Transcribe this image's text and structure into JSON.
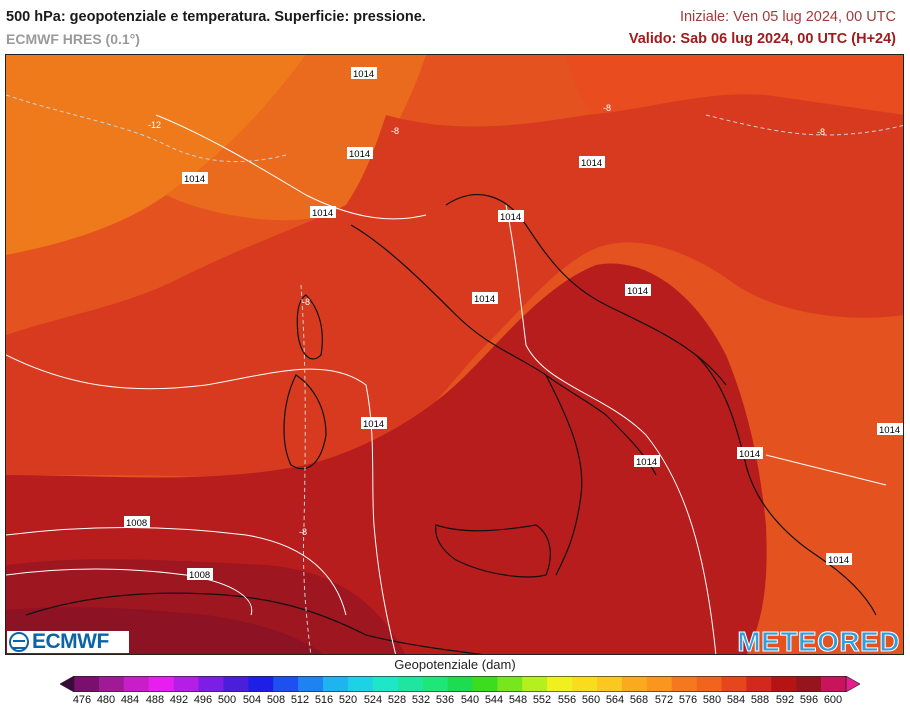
{
  "header": {
    "title": "500 hPa: geopotenziale e temperatura. Superficie: pressione.",
    "model": "ECMWF HRES (0.1°)",
    "initial": "Iniziale: Ven 05 lug 2024, 00 UTC",
    "valid": "Valido: Sab 06 lug 2024, 00 UTC (H+24)"
  },
  "map": {
    "isobar_labels": [
      "1014",
      "1014",
      "1014",
      "1014",
      "1014",
      "1014",
      "1014",
      "1014",
      "1014",
      "1014",
      "1014",
      "1014",
      "1014",
      "1008",
      "1008"
    ],
    "temperature_labels": [
      "-12",
      "-8",
      "-8",
      "-8",
      "-8",
      "-8"
    ]
  },
  "logos": {
    "ecmwf": "ECMWF",
    "meteored": "METEORED"
  },
  "legend": {
    "title": "Geopotenziale (dam)",
    "ticks": [
      "476",
      "480",
      "484",
      "488",
      "492",
      "496",
      "500",
      "504",
      "508",
      "512",
      "516",
      "520",
      "524",
      "528",
      "532",
      "536",
      "540",
      "544",
      "548",
      "552",
      "556",
      "560",
      "564",
      "568",
      "572",
      "576",
      "580",
      "584",
      "588",
      "592",
      "596",
      "600"
    ],
    "colors": [
      "#3a0a3a",
      "#7a0f6e",
      "#a01a96",
      "#c81ec8",
      "#e61ef0",
      "#b41ee6",
      "#7d1ee6",
      "#4b1edc",
      "#1e1ee6",
      "#1e50f0",
      "#1e82f0",
      "#1eb4f0",
      "#1ed2e6",
      "#1ee6c8",
      "#1ee6a0",
      "#1ee678",
      "#1edc50",
      "#3cdc1e",
      "#78e61e",
      "#b4f01e",
      "#f0f01e",
      "#fadc1e",
      "#fac81e",
      "#faaa1e",
      "#fa961e",
      "#f5781e",
      "#f0641e",
      "#e6461e",
      "#d2281e",
      "#b41414",
      "#96141e",
      "#c8145a",
      "#e61e8c"
    ]
  }
}
